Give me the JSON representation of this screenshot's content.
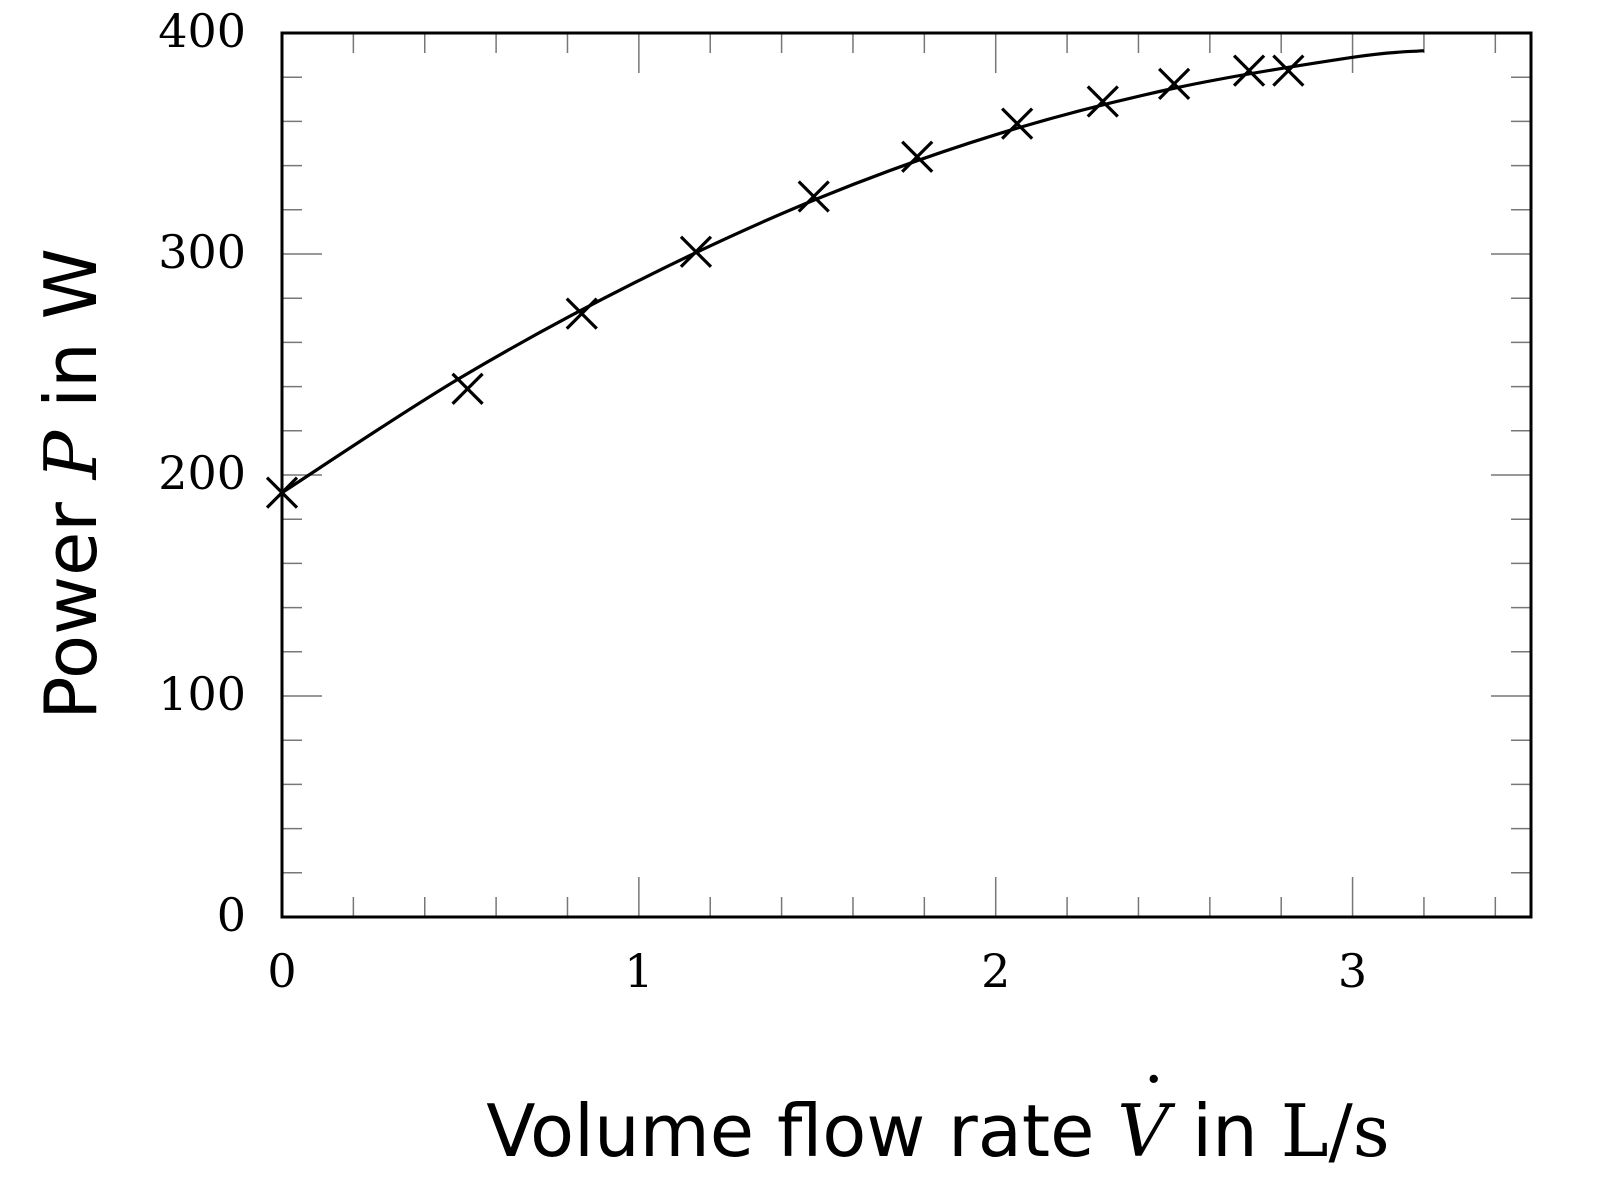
{
  "chart_data": {
    "type": "scatter",
    "title": "",
    "xlabel": {
      "prefix": "Volume flow rate ",
      "symbol": "V",
      "mid": " in ",
      "unit": "L/s"
    },
    "ylabel": {
      "prefix": "Power ",
      "symbol": "P",
      "suffix": " in W"
    },
    "xlim": [
      0,
      3.5
    ],
    "ylim": [
      0,
      400
    ],
    "x_ticks": [
      0,
      1,
      2,
      3
    ],
    "y_ticks": [
      0,
      100,
      200,
      300,
      400
    ],
    "x_minor_step": 0.2,
    "y_minor_step": 20,
    "grid": false,
    "series": [
      {
        "style": "markers-x",
        "x": [
          0.0,
          0.52,
          0.84,
          1.16,
          1.49,
          1.78,
          2.06,
          2.3,
          2.5,
          2.71,
          2.82
        ],
        "y": [
          192,
          239,
          273,
          301,
          326,
          344,
          359,
          369,
          377,
          383,
          383
        ]
      },
      {
        "style": "line",
        "x": [
          0.0,
          0.5,
          1.0,
          1.5,
          2.0,
          2.5,
          3.0,
          3.2
        ],
        "y": [
          192,
          244,
          288,
          325,
          354,
          375,
          389,
          392
        ]
      }
    ]
  }
}
